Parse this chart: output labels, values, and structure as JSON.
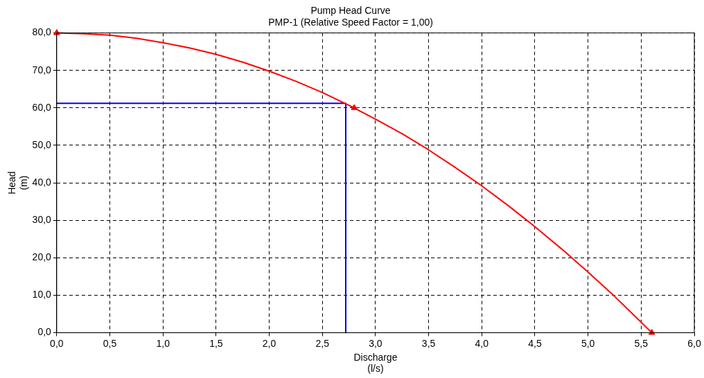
{
  "chart_data": {
    "type": "line",
    "title": "Pump Head Curve",
    "subtitle": "PMP-1 (Relative Speed Factor = 1,00)",
    "xlabel": "Discharge\n(l/s)",
    "ylabel": "Head\n(m)",
    "xlim": [
      0,
      6
    ],
    "ylim": [
      0,
      80
    ],
    "xticks": [
      {
        "value": 0,
        "label": "0,0"
      },
      {
        "value": 0.5,
        "label": "0,5"
      },
      {
        "value": 1,
        "label": "1,0"
      },
      {
        "value": 1.5,
        "label": "1,5"
      },
      {
        "value": 2,
        "label": "2,0"
      },
      {
        "value": 2.5,
        "label": "2,5"
      },
      {
        "value": 3,
        "label": "3,0"
      },
      {
        "value": 3.5,
        "label": "3,5"
      },
      {
        "value": 4,
        "label": "4,0"
      },
      {
        "value": 4.5,
        "label": "4,5"
      },
      {
        "value": 5,
        "label": "5,0"
      },
      {
        "value": 5.5,
        "label": "5,5"
      },
      {
        "value": 6,
        "label": "6,0"
      }
    ],
    "yticks": [
      {
        "value": 0,
        "label": "0,0"
      },
      {
        "value": 10,
        "label": "10,0"
      },
      {
        "value": 20,
        "label": "20,0"
      },
      {
        "value": 30,
        "label": "30,0"
      },
      {
        "value": 40,
        "label": "40,0"
      },
      {
        "value": 50,
        "label": "50,0"
      },
      {
        "value": 60,
        "label": "60,0"
      },
      {
        "value": 70,
        "label": "70,0"
      },
      {
        "value": 80,
        "label": "80,0"
      }
    ],
    "grid": true,
    "legend": false,
    "series": [
      {
        "marker": "none",
        "color": "#ff0000",
        "x": [
          0,
          0.25,
          0.5,
          0.75,
          1,
          1.25,
          1.5,
          1.75,
          2,
          2.25,
          2.5,
          2.75,
          3,
          3.25,
          3.5,
          3.75,
          4,
          4.25,
          4.5,
          4.75,
          5,
          5.25,
          5.5,
          5.6
        ],
        "values": [
          80,
          79.8,
          79.4,
          78.6,
          77.4,
          76,
          74.3,
          72.2,
          69.8,
          67.1,
          64.1,
          60.7,
          57,
          53.1,
          48.8,
          44.1,
          39.2,
          33.9,
          28.3,
          22.4,
          16.2,
          9.7,
          2.8,
          0
        ]
      },
      {
        "type": "scatter",
        "marker": "triangle",
        "color": "#ff0000",
        "x": [
          0,
          2.8,
          5.6
        ],
        "values": [
          80,
          60,
          0
        ]
      },
      {
        "type": "line",
        "marker": "none",
        "color": "#0000ff",
        "x": [
          0,
          2.72,
          2.72
        ],
        "values": [
          61.2,
          61.2,
          0
        ]
      }
    ]
  }
}
